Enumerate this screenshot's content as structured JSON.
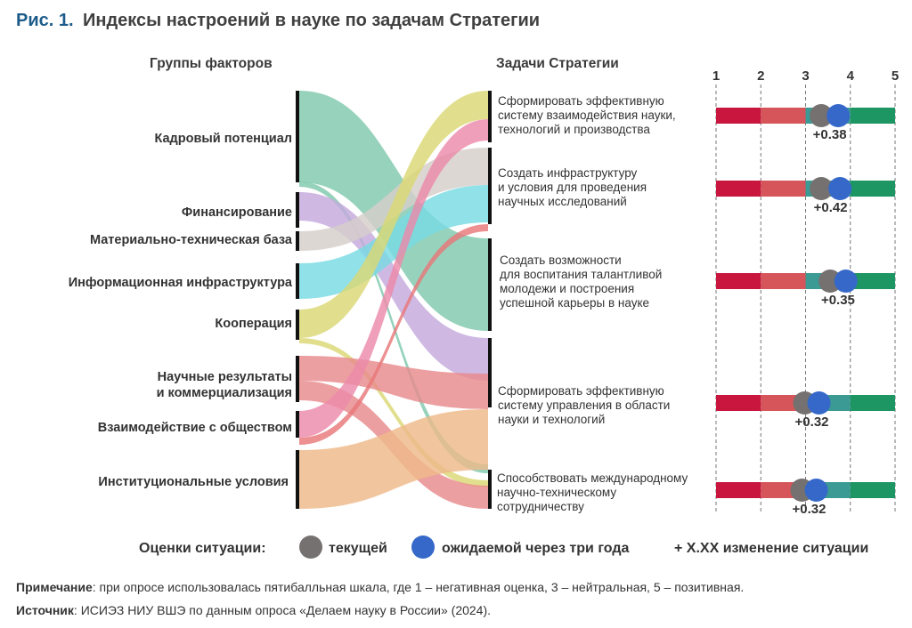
{
  "title": {
    "prefix": "Рис. 1.",
    "text": "Индексы настроений в науке по задачам Стратегии"
  },
  "headers": {
    "factors": "Группы факторов",
    "tasks": "Задачи Стратегии"
  },
  "factors": [
    {
      "label1": "Кадровый потенциал",
      "label2": ""
    },
    {
      "label1": "Финансирование",
      "label2": ""
    },
    {
      "label1": "Материально-техническая база",
      "label2": ""
    },
    {
      "label1": "Информационная инфраструктура",
      "label2": ""
    },
    {
      "label1": "Кооперация",
      "label2": ""
    },
    {
      "label1": "Научные результаты",
      "label2": "и коммерциализация"
    },
    {
      "label1": "Взаимодействие с обществом",
      "label2": ""
    },
    {
      "label1": "Институциональные условия",
      "label2": ""
    }
  ],
  "tasks": [
    {
      "lines": [
        "Сформировать эффективную",
        "систему взаимодействия науки,",
        "технологий и производства"
      ]
    },
    {
      "lines": [
        "Создать инфраструктуру",
        "и условия для проведения",
        "научных исследований"
      ]
    },
    {
      "lines": [
        "Создать возможности",
        "для воспитания талантливой",
        "молодежи и построения",
        "успешной карьеры в науке"
      ]
    },
    {
      "lines": [
        "Сформировать эффективную",
        "систему управления в области",
        "науки и технологий"
      ]
    },
    {
      "lines": [
        "Способствовать международному",
        "научно-техническому",
        "сотрудничеству"
      ]
    }
  ],
  "chart_data": {
    "type": "dot",
    "axis_ticks": [
      "1",
      "2",
      "3",
      "4",
      "5"
    ],
    "xlim": [
      1,
      5
    ],
    "rows": [
      {
        "current": 3.35,
        "expected": 3.73,
        "delta_label": "+0.38"
      },
      {
        "current": 3.35,
        "expected": 3.77,
        "delta_label": "+0.42"
      },
      {
        "current": 3.55,
        "expected": 3.9,
        "delta_label": "+0.35"
      },
      {
        "current": 2.98,
        "expected": 3.3,
        "delta_label": "+0.32"
      },
      {
        "current": 2.92,
        "expected": 3.24,
        "delta_label": "+0.32"
      }
    ],
    "scale_colors": [
      "#c8163f",
      "#d5555a",
      "#3b9a93",
      "#1e9664"
    ],
    "current_color": "#757170",
    "expected_color": "#3568c9"
  },
  "legend": {
    "title": "Оценки ситуации:",
    "current": "текущей",
    "expected": "ожидаемой через три года",
    "change": "+ X.XX изменение ситуации"
  },
  "notes": {
    "note_label": "Примечание",
    "note_text": ": при опросе использовалась пятибалльная шкала, где 1 – негативная оценка, 3 – нейтральная, 5 – позитивная.",
    "source_label": "Источник",
    "source_text": ": ИСИЭЗ НИУ ВШЭ по данным опроса «Делаем науку в России» (2024)."
  }
}
